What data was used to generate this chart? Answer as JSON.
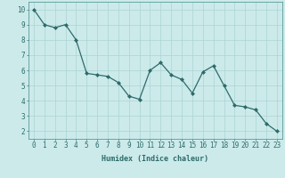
{
  "x": [
    0,
    1,
    2,
    3,
    4,
    5,
    6,
    7,
    8,
    9,
    10,
    11,
    12,
    13,
    14,
    15,
    16,
    17,
    18,
    19,
    20,
    21,
    22,
    23
  ],
  "y": [
    10,
    9,
    8.8,
    9,
    8,
    5.8,
    5.7,
    5.6,
    5.2,
    4.3,
    4.1,
    6.0,
    6.5,
    5.7,
    5.4,
    4.5,
    5.9,
    6.3,
    5.0,
    3.7,
    3.6,
    3.4,
    2.5,
    2.0
  ],
  "line_color": "#2e6b6b",
  "marker": "D",
  "marker_size": 2,
  "background_color": "#cceaea",
  "grid_color": "#aad4d4",
  "xlabel": "Humidex (Indice chaleur)",
  "ylim": [
    1.5,
    10.5
  ],
  "xlim": [
    -0.5,
    23.5
  ],
  "yticks": [
    2,
    3,
    4,
    5,
    6,
    7,
    8,
    9,
    10
  ],
  "xticks": [
    0,
    1,
    2,
    3,
    4,
    5,
    6,
    7,
    8,
    9,
    10,
    11,
    12,
    13,
    14,
    15,
    16,
    17,
    18,
    19,
    20,
    21,
    22,
    23
  ],
  "tick_color": "#2e6b6b",
  "label_fontsize": 6,
  "tick_fontsize": 5.5,
  "spine_color": "#5a9a9a",
  "linewidth": 0.9
}
